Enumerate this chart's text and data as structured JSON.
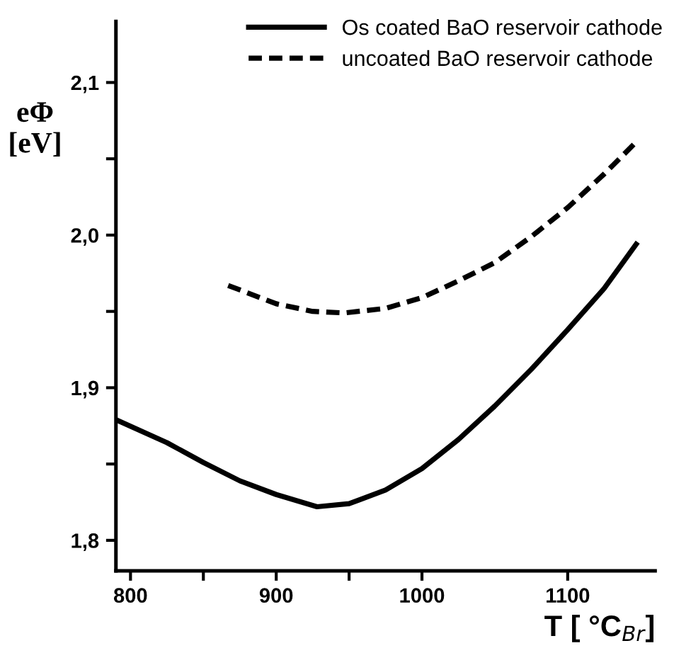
{
  "chart_data": {
    "type": "line",
    "xlabel": "T [ °C$_{Br}$]",
    "ylabel": "eΦ\n[eV]",
    "series": [
      {
        "name": "Os coated BaO reservoir cathode",
        "color": "#000000",
        "line_style": "solid",
        "x": [
          790,
          825,
          850,
          875,
          900,
          928,
          950,
          975,
          1000,
          1025,
          1050,
          1075,
          1100,
          1125,
          1147
        ],
        "values": [
          1.879,
          1.864,
          1.851,
          1.839,
          1.83,
          1.822,
          1.824,
          1.833,
          1.847,
          1.866,
          1.888,
          1.912,
          1.938,
          1.965,
          1.994
        ]
      },
      {
        "name": "uncoated BaO reservoir cathode",
        "color": "#000000",
        "line_style": "dashed",
        "x": [
          867,
          900,
          925,
          947,
          975,
          1000,
          1025,
          1050,
          1075,
          1100,
          1125,
          1147
        ],
        "values": [
          1.967,
          1.955,
          1.95,
          1.949,
          1.952,
          1.959,
          1.97,
          1.982,
          1.999,
          2.018,
          2.04,
          2.061
        ]
      }
    ],
    "xlim": [
      790,
      1160
    ],
    "ylim": [
      1.78,
      2.14
    ],
    "xticks": [
      800,
      {
        "value": 850,
        "label": null
      },
      900,
      {
        "value": 950,
        "label": null
      },
      1000,
      1100
    ],
    "yticks": [
      {
        "value": 1.8,
        "label": "1,8"
      },
      {
        "value": 1.85,
        "label": null
      },
      {
        "value": 1.9,
        "label": "1,9"
      },
      {
        "value": 1.95,
        "label": null
      },
      {
        "value": 2.0,
        "label": "2,0"
      },
      {
        "value": 2.05,
        "label": null
      },
      {
        "value": 2.1,
        "label": "2,1"
      }
    ],
    "grid": false,
    "legend": "top right",
    "marker": "none"
  }
}
